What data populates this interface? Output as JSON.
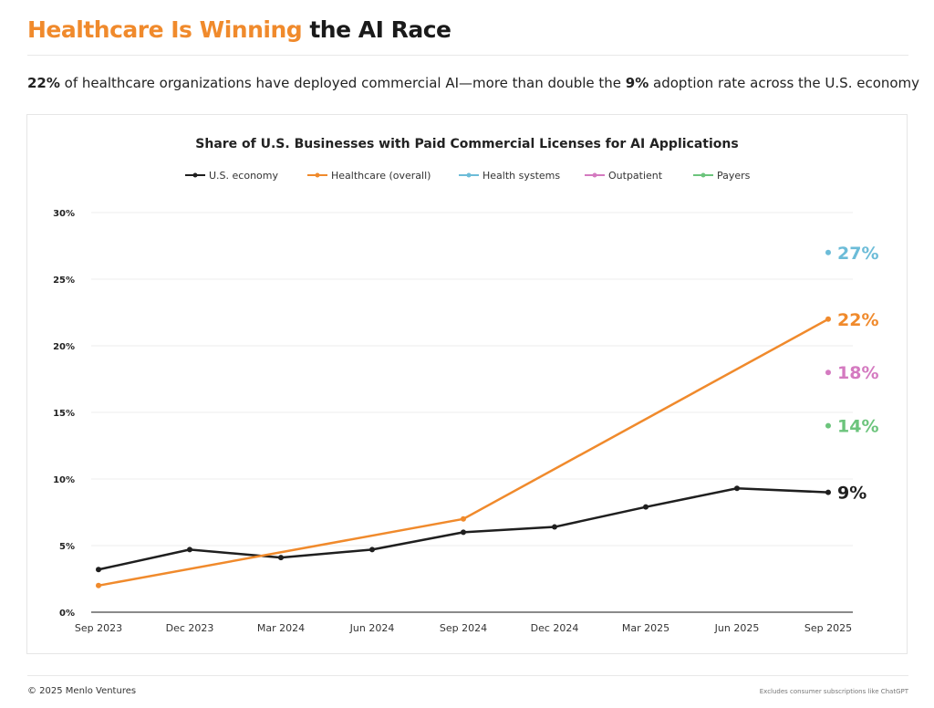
{
  "header": {
    "title_highlight": "Healthcare Is Winning",
    "title_rest": " the AI Race",
    "subtitle_b1": "22%",
    "subtitle_t1": " of healthcare organizations have deployed commercial AI—more than double the ",
    "subtitle_b2": "9%",
    "subtitle_t2": " adoption rate across the U.S. economy"
  },
  "footer": {
    "copyright": "© 2025 Menlo Ventures",
    "note": "Excludes consumer subscriptions like ChatGPT"
  },
  "chart_data": {
    "type": "line",
    "title": "Share of U.S. Businesses with Paid Commercial Licenses for AI Applications",
    "x": [
      "Sep 2023",
      "Dec 2023",
      "Mar 2024",
      "Jun 2024",
      "Sep 2024",
      "Dec 2024",
      "Mar 2025",
      "Jun 2025",
      "Sep 2025"
    ],
    "ylim": [
      0,
      30
    ],
    "yticks": [
      0,
      5,
      10,
      15,
      20,
      25,
      30
    ],
    "ytick_labels": [
      "0%",
      "5%",
      "10%",
      "15%",
      "20%",
      "25%",
      "30%"
    ],
    "grid": true,
    "legend_placement": "top",
    "series": [
      {
        "name": "U.S. economy",
        "color": "#1f1f1f",
        "values": [
          3.2,
          4.7,
          4.1,
          4.7,
          6.0,
          6.4,
          7.9,
          9.3,
          9.0
        ],
        "end_label": "9%"
      },
      {
        "name": "Healthcare (overall)",
        "color": "#f08a2c",
        "values": [
          2,
          null,
          null,
          null,
          7,
          null,
          null,
          null,
          22
        ],
        "end_label": "22%"
      },
      {
        "name": "Health systems",
        "color": "#6cbcd8",
        "values": [
          null,
          null,
          null,
          null,
          null,
          null,
          null,
          null,
          27
        ],
        "end_label": "27%"
      },
      {
        "name": "Outpatient",
        "color": "#d47ac0",
        "values": [
          null,
          null,
          null,
          null,
          null,
          null,
          null,
          null,
          18
        ],
        "end_label": "18%"
      },
      {
        "name": "Payers",
        "color": "#6cc47c",
        "values": [
          null,
          null,
          null,
          null,
          null,
          null,
          null,
          null,
          14
        ],
        "end_label": "14%"
      }
    ]
  }
}
